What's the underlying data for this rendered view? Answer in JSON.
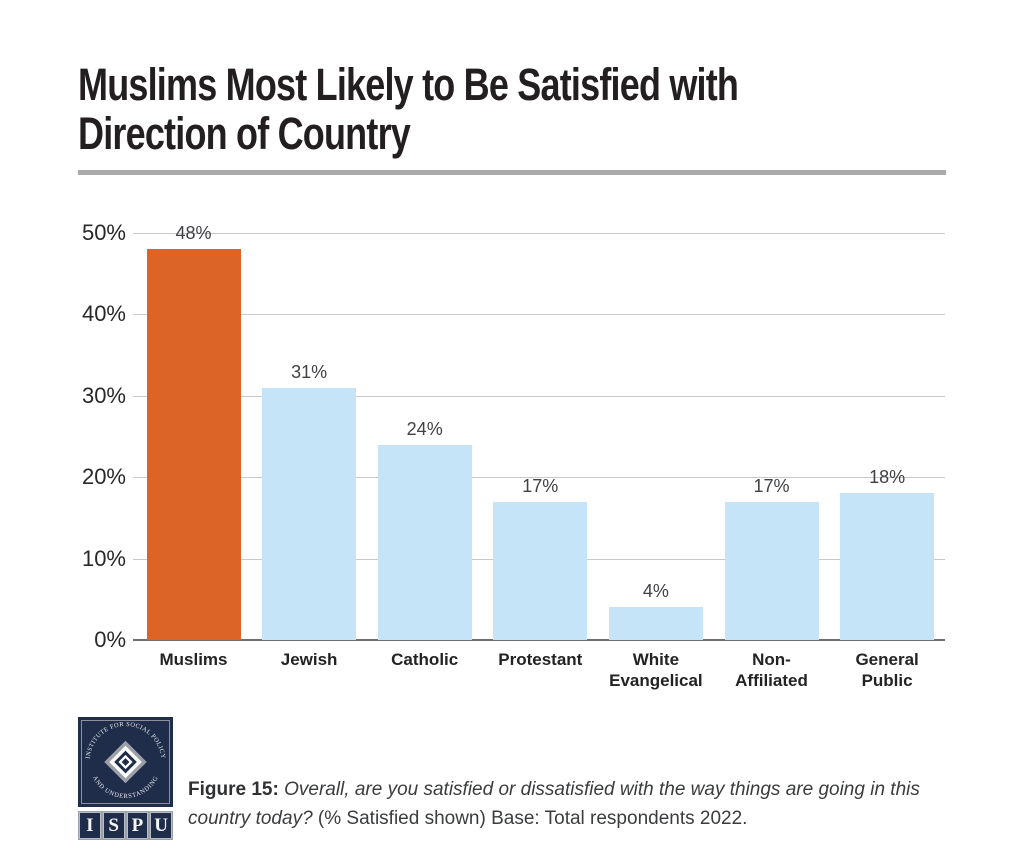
{
  "page": {
    "title": "Muslims Most Likely to Be Satisfied with\nDirection of Country"
  },
  "chart_data": {
    "type": "bar",
    "title": "Muslims Most Likely to Be Satisfied with Direction of Country",
    "categories": [
      "Muslims",
      "Jewish",
      "Catholic",
      "Protestant",
      "White\nEvangelical",
      "Non-\nAffiliated",
      "General\nPublic"
    ],
    "values": [
      48,
      31,
      24,
      17,
      4,
      17,
      18
    ],
    "value_labels": [
      "48%",
      "31%",
      "24%",
      "17%",
      "4%",
      "17%",
      "18%"
    ],
    "bar_colors": [
      "#DC6426",
      "#C6E4F7",
      "#C6E4F7",
      "#C6E4F7",
      "#C6E4F7",
      "#C6E4F7",
      "#C6E4F7"
    ],
    "highlight_index": 0,
    "xlabel": "",
    "ylabel": "",
    "ylim": [
      0,
      50
    ],
    "y_ticks": [
      {
        "label": "50%",
        "value": 50
      },
      {
        "label": "40%",
        "value": 40
      },
      {
        "label": "30%",
        "value": 30
      },
      {
        "label": "20%",
        "value": 20
      },
      {
        "label": "10%",
        "value": 10
      },
      {
        "label": "0%",
        "value": 0
      }
    ],
    "grid": true,
    "legend": "none"
  },
  "caption": {
    "figure_label": "Figure 15:",
    "question": "Overall, are you satisfied or dissatisfied with the way things are going in this country today?",
    "suffix": "(% Satisfied shown) Base: Total respondents 2022."
  },
  "logo": {
    "arc_top": "INSTITUTE FOR SOCIAL POLICY",
    "arc_bottom": "AND UNDERSTANDING",
    "acronym": [
      "I",
      "S",
      "P",
      "U"
    ]
  },
  "colors": {
    "accent_orange": "#DC6426",
    "bar_blue": "#C6E4F7",
    "logo_navy": "#1F2D4B",
    "gridline": "#C9C9C9",
    "axis_line": "#6D6E70",
    "divider_gray": "#ABABAB",
    "title_text": "#231F20",
    "body_text": "#3A3C3E"
  }
}
